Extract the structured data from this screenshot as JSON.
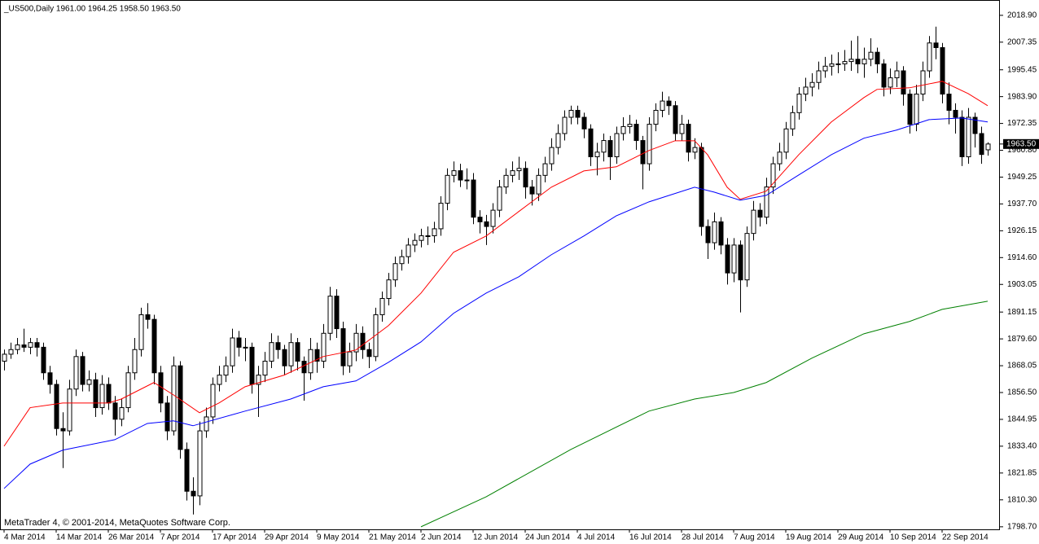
{
  "chart_data": {
    "type": "candlestick",
    "title": "_US500,Daily  1961.00 1964.25 1958.50 1963.50",
    "footer": "MetaTrader 4, © 2001-2014, MetaQuotes Software Corp.",
    "ylim": [
      1797.6,
      2025.5
    ],
    "yticks": [
      {
        "value": 2018.9,
        "label": "2018.90"
      },
      {
        "value": 2007.35,
        "label": "2007.35"
      },
      {
        "value": 1995.45,
        "label": "1995.45"
      },
      {
        "value": 1983.9,
        "label": "1983.90"
      },
      {
        "value": 1972.35,
        "label": "1972.35"
      },
      {
        "value": 1960.8,
        "label": "1960.80"
      },
      {
        "value": 1949.25,
        "label": "1949.25"
      },
      {
        "value": 1937.7,
        "label": "1937.70"
      },
      {
        "value": 1926.15,
        "label": "1926.15"
      },
      {
        "value": 1914.6,
        "label": "1914.60"
      },
      {
        "value": 1903.05,
        "label": "1903.05"
      },
      {
        "value": 1891.15,
        "label": "1891.15"
      },
      {
        "value": 1879.6,
        "label": "1879.60"
      },
      {
        "value": 1868.05,
        "label": "1868.05"
      },
      {
        "value": 1856.5,
        "label": "1856.50"
      },
      {
        "value": 1844.95,
        "label": "1844.95"
      },
      {
        "value": 1833.4,
        "label": "1833.40"
      },
      {
        "value": 1821.85,
        "label": "1821.85"
      },
      {
        "value": 1810.3,
        "label": "1810.30"
      },
      {
        "value": 1798.7,
        "label": "1798.70"
      }
    ],
    "last_price": {
      "value": 1963.5,
      "label": "1963.50"
    },
    "up_color": "#ffffff",
    "down_color": "#000000",
    "categories": [
      "4 Mar 2014",
      null,
      null,
      null,
      null,
      null,
      null,
      null,
      "14 Mar 2014",
      null,
      null,
      null,
      null,
      null,
      null,
      null,
      "26 Mar 2014",
      null,
      null,
      null,
      null,
      null,
      null,
      null,
      "7 Apr 2014",
      null,
      null,
      null,
      null,
      null,
      null,
      null,
      "17 Apr 2014",
      null,
      null,
      null,
      null,
      null,
      null,
      null,
      "29 Apr 2014",
      null,
      null,
      null,
      null,
      null,
      null,
      null,
      "9 May 2014",
      null,
      null,
      null,
      null,
      null,
      null,
      null,
      "21 May 2014",
      null,
      null,
      null,
      null,
      null,
      null,
      null,
      "2 Jun 2014",
      null,
      null,
      null,
      null,
      null,
      null,
      null,
      "12 Jun 2014",
      null,
      null,
      null,
      null,
      null,
      null,
      null,
      "24 Jun 2014",
      null,
      null,
      null,
      null,
      null,
      null,
      null,
      "4 Jul 2014",
      null,
      null,
      null,
      null,
      null,
      null,
      null,
      "16 Jul 2014",
      null,
      null,
      null,
      null,
      null,
      null,
      null,
      "28 Jul 2014",
      null,
      null,
      null,
      null,
      null,
      null,
      null,
      "7 Aug 2014",
      null,
      null,
      null,
      null,
      null,
      null,
      null,
      "19 Aug 2014",
      null,
      null,
      null,
      null,
      null,
      null,
      null,
      "29 Aug 2014",
      null,
      null,
      null,
      null,
      null,
      null,
      null,
      "10 Sep 2014",
      null,
      null,
      null,
      null,
      null,
      null,
      null,
      "22 Sep 2014",
      null,
      null,
      null,
      null,
      null,
      null,
      null
    ],
    "candles": [
      [
        1870,
        1875,
        1866,
        1873
      ],
      [
        1873,
        1878,
        1871,
        1875
      ],
      [
        1875,
        1880,
        1873,
        1877
      ],
      [
        1877,
        1884,
        1874,
        1876
      ],
      [
        1876,
        1880,
        1873,
        1878
      ],
      [
        1878,
        1880,
        1872,
        1876
      ],
      [
        1876,
        1878,
        1862,
        1865
      ],
      [
        1865,
        1868,
        1856,
        1860
      ],
      [
        1860,
        1862,
        1838,
        1841
      ],
      [
        1841,
        1848,
        1824,
        1840
      ],
      [
        1840,
        1862,
        1838,
        1858
      ],
      [
        1858,
        1875,
        1855,
        1872
      ],
      [
        1872,
        1874,
        1857,
        1860
      ],
      [
        1860,
        1866,
        1857,
        1862
      ],
      [
        1862,
        1865,
        1846,
        1850
      ],
      [
        1850,
        1864,
        1847,
        1860
      ],
      [
        1860,
        1863,
        1849,
        1852
      ],
      [
        1852,
        1855,
        1838,
        1845
      ],
      [
        1845,
        1854,
        1842,
        1850
      ],
      [
        1850,
        1868,
        1848,
        1865
      ],
      [
        1865,
        1880,
        1862,
        1875
      ],
      [
        1875,
        1893,
        1872,
        1890
      ],
      [
        1890,
        1895,
        1884,
        1888
      ],
      [
        1888,
        1890,
        1860,
        1865
      ],
      [
        1865,
        1868,
        1848,
        1852
      ],
      [
        1852,
        1855,
        1836,
        1840
      ],
      [
        1840,
        1872,
        1838,
        1868
      ],
      [
        1868,
        1870,
        1828,
        1832
      ],
      [
        1832,
        1835,
        1810,
        1814
      ],
      [
        1814,
        1820,
        1804,
        1812
      ],
      [
        1812,
        1844,
        1808,
        1840
      ],
      [
        1840,
        1850,
        1837,
        1846
      ],
      [
        1846,
        1863,
        1843,
        1860
      ],
      [
        1860,
        1868,
        1857,
        1864
      ],
      [
        1864,
        1872,
        1861,
        1868
      ],
      [
        1868,
        1884,
        1865,
        1880
      ],
      [
        1880,
        1883,
        1872,
        1876
      ],
      [
        1876,
        1880,
        1870,
        1876
      ],
      [
        1876,
        1878,
        1856,
        1860
      ],
      [
        1860,
        1868,
        1846,
        1864
      ],
      [
        1864,
        1874,
        1861,
        1870
      ],
      [
        1870,
        1882,
        1867,
        1878
      ],
      [
        1878,
        1881,
        1871,
        1875
      ],
      [
        1875,
        1877,
        1864,
        1868
      ],
      [
        1868,
        1882,
        1865,
        1878
      ],
      [
        1878,
        1880,
        1866,
        1870
      ],
      [
        1870,
        1872,
        1853,
        1865
      ],
      [
        1865,
        1880,
        1862,
        1875
      ],
      [
        1875,
        1878,
        1865,
        1870
      ],
      [
        1870,
        1886,
        1867,
        1882
      ],
      [
        1882,
        1902,
        1879,
        1898
      ],
      [
        1898,
        1901,
        1880,
        1884
      ],
      [
        1884,
        1887,
        1864,
        1868
      ],
      [
        1868,
        1878,
        1865,
        1874
      ],
      [
        1874,
        1886,
        1870,
        1882
      ],
      [
        1882,
        1885,
        1871,
        1875
      ],
      [
        1875,
        1878,
        1867,
        1872
      ],
      [
        1872,
        1893,
        1870,
        1890
      ],
      [
        1890,
        1900,
        1887,
        1897
      ],
      [
        1897,
        1908,
        1894,
        1905
      ],
      [
        1905,
        1915,
        1902,
        1912
      ],
      [
        1912,
        1918,
        1909,
        1915
      ],
      [
        1915,
        1923,
        1912,
        1920
      ],
      [
        1920,
        1925,
        1917,
        1922
      ],
      [
        1922,
        1927,
        1919,
        1924
      ],
      [
        1924,
        1928,
        1920,
        1924
      ],
      [
        1924,
        1930,
        1921,
        1927
      ],
      [
        1927,
        1941,
        1924,
        1938
      ],
      [
        1938,
        1953,
        1935,
        1950
      ],
      [
        1950,
        1956,
        1947,
        1952
      ],
      [
        1952,
        1955,
        1945,
        1948
      ],
      [
        1948,
        1953,
        1944,
        1948
      ],
      [
        1948,
        1951,
        1929,
        1932
      ],
      [
        1932,
        1935,
        1925,
        1930
      ],
      [
        1930,
        1933,
        1920,
        1928
      ],
      [
        1928,
        1938,
        1925,
        1935
      ],
      [
        1935,
        1948,
        1932,
        1945
      ],
      [
        1945,
        1953,
        1942,
        1950
      ],
      [
        1950,
        1956,
        1947,
        1952
      ],
      [
        1952,
        1958,
        1948,
        1953
      ],
      [
        1953,
        1956,
        1940,
        1945
      ],
      [
        1945,
        1948,
        1937,
        1942
      ],
      [
        1942,
        1953,
        1939,
        1950
      ],
      [
        1950,
        1958,
        1947,
        1955
      ],
      [
        1955,
        1966,
        1952,
        1962
      ],
      [
        1962,
        1972,
        1959,
        1968
      ],
      [
        1968,
        1978,
        1965,
        1975
      ],
      [
        1975,
        1980,
        1972,
        1978
      ],
      [
        1978,
        1980,
        1972,
        1975
      ],
      [
        1975,
        1977,
        1966,
        1970
      ],
      [
        1970,
        1972,
        1954,
        1958
      ],
      [
        1958,
        1964,
        1950,
        1960
      ],
      [
        1960,
        1968,
        1956,
        1965
      ],
      [
        1965,
        1967,
        1948,
        1958
      ],
      [
        1958,
        1971,
        1955,
        1968
      ],
      [
        1968,
        1975,
        1965,
        1971
      ],
      [
        1971,
        1976,
        1968,
        1972
      ],
      [
        1972,
        1974,
        1961,
        1965
      ],
      [
        1965,
        1967,
        1944,
        1955
      ],
      [
        1955,
        1975,
        1952,
        1972
      ],
      [
        1972,
        1981,
        1969,
        1978
      ],
      [
        1978,
        1986,
        1975,
        1982
      ],
      [
        1982,
        1984,
        1976,
        1980
      ],
      [
        1980,
        1982,
        1965,
        1968
      ],
      [
        1968,
        1976,
        1965,
        1972
      ],
      [
        1972,
        1974,
        1956,
        1960
      ],
      [
        1960,
        1966,
        1957,
        1962
      ],
      [
        1962,
        1964,
        1924,
        1928
      ],
      [
        1928,
        1931,
        1914,
        1921
      ],
      [
        1921,
        1934,
        1918,
        1930
      ],
      [
        1930,
        1932,
        1916,
        1920
      ],
      [
        1920,
        1923,
        1903,
        1908
      ],
      [
        1908,
        1923,
        1904,
        1920
      ],
      [
        1920,
        1922,
        1891,
        1905
      ],
      [
        1905,
        1928,
        1902,
        1925
      ],
      [
        1925,
        1939,
        1922,
        1935
      ],
      [
        1935,
        1938,
        1928,
        1932
      ],
      [
        1932,
        1949,
        1929,
        1945
      ],
      [
        1945,
        1958,
        1942,
        1955
      ],
      [
        1955,
        1964,
        1952,
        1960
      ],
      [
        1960,
        1973,
        1957,
        1970
      ],
      [
        1970,
        1980,
        1967,
        1977
      ],
      [
        1977,
        1988,
        1974,
        1985
      ],
      [
        1985,
        1992,
        1982,
        1988
      ],
      [
        1988,
        1994,
        1984,
        1990
      ],
      [
        1990,
        1999,
        1987,
        1995
      ],
      [
        1995,
        2001,
        1992,
        1997
      ],
      [
        1997,
        2002,
        1993,
        1998
      ],
      [
        1998,
        2003,
        1994,
        1998
      ],
      [
        1998,
        2004,
        1995,
        1999
      ],
      [
        1999,
        2008,
        1995,
        2000
      ],
      [
        2000,
        2010,
        1994,
        1998
      ],
      [
        1998,
        2005,
        1992,
        2000
      ],
      [
        2000,
        2009,
        1997,
        2003
      ],
      [
        2003,
        2005,
        1994,
        1998
      ],
      [
        1998,
        2000,
        1984,
        1988
      ],
      [
        1988,
        1996,
        1985,
        1992
      ],
      [
        1992,
        1999,
        1988,
        1995
      ],
      [
        1995,
        1997,
        1980,
        1985
      ],
      [
        1985,
        1987,
        1968,
        1972
      ],
      [
        1972,
        1989,
        1969,
        1985
      ],
      [
        1985,
        1999,
        1982,
        1995
      ],
      [
        1995,
        2010,
        1992,
        2007
      ],
      [
        2007,
        2014,
        2000,
        2005
      ],
      [
        2005,
        2007,
        1981,
        1985
      ],
      [
        1985,
        1990,
        1972,
        1978
      ],
      [
        1978,
        1981,
        1968,
        1975
      ],
      [
        1975,
        1978,
        1954,
        1958
      ],
      [
        1958,
        1979,
        1955,
        1975
      ],
      [
        1975,
        1977,
        1962,
        1968
      ],
      [
        1968,
        1971,
        1955,
        1959
      ],
      [
        1961,
        1964.25,
        1958.5,
        1963.5
      ]
    ],
    "series": [
      {
        "color": "#ff0000",
        "x": [
          0,
          4,
          9,
          16,
          18,
          23,
          26,
          30,
          33,
          37,
          43,
          49,
          54,
          59,
          64,
          69,
          74,
          79,
          84,
          89,
          94,
          99,
          103,
          106,
          108,
          111,
          113,
          117,
          122,
          127,
          132,
          134,
          139,
          144,
          148,
          151
        ],
        "values": [
          1833.4,
          1850,
          1852,
          1852,
          1853.7,
          1860.8,
          1855.5,
          1847.8,
          1852,
          1859,
          1864,
          1872,
          1874.8,
          1885.3,
          1899.3,
          1916.9,
          1923.9,
          1934.4,
          1944.9,
          1951.9,
          1953.7,
          1960.7,
          1964.9,
          1964.9,
          1958.9,
          1944.9,
          1939.7,
          1943.2,
          1958.9,
          1973,
          1983.5,
          1987,
          1987.7,
          1990.5,
          1985.2,
          1980
        ]
      },
      {
        "color": "#0000ff",
        "x": [
          0,
          4,
          9,
          17,
          22,
          26,
          29,
          37,
          44,
          49,
          54,
          59,
          64,
          69,
          74,
          79,
          84,
          89,
          94,
          99,
          106,
          109,
          113,
          117,
          122,
          127,
          132,
          137,
          142,
          147,
          151
        ],
        "values": [
          1815.2,
          1825.7,
          1831.7,
          1836.2,
          1843.2,
          1844.3,
          1842.2,
          1848.5,
          1853.7,
          1859,
          1861.5,
          1869.5,
          1878.3,
          1890.6,
          1899.3,
          1906.3,
          1915.8,
          1923.9,
          1932.6,
          1938.6,
          1944.9,
          1942.8,
          1939.3,
          1941.4,
          1950.2,
          1958.9,
          1966,
          1969.5,
          1974,
          1974.7,
          1973
        ]
      },
      {
        "color": "#008000",
        "x": [
          64,
          74,
          87,
          99,
          106,
          112,
          117,
          124,
          132,
          139,
          144,
          151
        ],
        "values": [
          1798.7,
          1811.6,
          1832,
          1848.5,
          1853.7,
          1856.5,
          1860.8,
          1871.3,
          1881.8,
          1887.1,
          1892.3,
          1895.8
        ]
      }
    ]
  }
}
